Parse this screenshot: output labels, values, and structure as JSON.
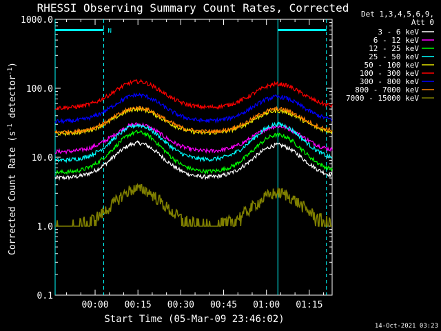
{
  "chart_data": {
    "type": "line",
    "title": "RHESSI Observing Summary Count Rates, Corrected",
    "xlabel": "Start Time (05-Mar-09 23:46:02)",
    "ylabel_main": "Corrected Count Rate (s",
    "ylabel_sup1": "-1",
    "ylabel_mid": " detector",
    "ylabel_sup2": "-1",
    "ylabel_end": ")",
    "y_scale": "log",
    "ylim": [
      0.1,
      1000.0
    ],
    "xlim_minutes": [
      0,
      97
    ],
    "x_ticks": [
      {
        "min": 14,
        "label": "00:00"
      },
      {
        "min": 29,
        "label": "00:15"
      },
      {
        "min": 44,
        "label": "00:30"
      },
      {
        "min": 59,
        "label": "00:45"
      },
      {
        "min": 74,
        "label": "01:00"
      },
      {
        "min": 89,
        "label": "01:15"
      }
    ],
    "y_ticks": [
      {
        "value": 0.1,
        "label": "0.1"
      },
      {
        "value": 1.0,
        "label": "1.0"
      },
      {
        "value": 10.0,
        "label": "10.0"
      },
      {
        "value": 100.0,
        "label": "100.0"
      },
      {
        "value": 1000.0,
        "label": "1000.0"
      }
    ],
    "legend_header": [
      "Det 1,3,4,5,6,9,",
      "Att 0"
    ],
    "legend_placement": "top-right outside",
    "series": [
      {
        "name": "3 - 6 keV",
        "color": "#ffffff",
        "base": 5.0,
        "peak1": 16,
        "peak2": 15
      },
      {
        "name": "6 - 12 keV",
        "color": "#ff00ff",
        "base": 12.0,
        "peak1": 30,
        "peak2": 28
      },
      {
        "name": "12 - 25 keV",
        "color": "#00ff00",
        "base": 6.0,
        "peak1": 23,
        "peak2": 21
      },
      {
        "name": "25 - 50 keV",
        "color": "#00ffff",
        "base": 9.0,
        "peak1": 29,
        "peak2": 30
      },
      {
        "name": "50 - 100 keV",
        "color": "#e6e600",
        "base": 22.0,
        "peak1": 50,
        "peak2": 47
      },
      {
        "name": "100 - 300 keV",
        "color": "#ff0000",
        "base": 52.0,
        "peak1": 125,
        "peak2": 115
      },
      {
        "name": "300 - 800 keV",
        "color": "#0000ff",
        "base": 33.0,
        "peak1": 80,
        "peak2": 75
      },
      {
        "name": "800 - 7000 keV",
        "color": "#ff8000",
        "base": 23.0,
        "peak1": 52,
        "peak2": 50
      },
      {
        "name": "7000 - 15000 keV",
        "color": "#808000",
        "base": 1.0,
        "peak1": 3.5,
        "peak2": 3.0
      }
    ],
    "peak_times_minutes": [
      29,
      78
    ],
    "flag_bars": [
      {
        "start_min": 0,
        "end_min": 17,
        "value": 700,
        "label": "N"
      },
      {
        "start_min": 78,
        "end_min": 95,
        "value": 700,
        "label": ""
      }
    ],
    "vertical_markers": [
      {
        "min": 0,
        "style": "solid"
      },
      {
        "min": 17,
        "style": "dashed"
      },
      {
        "min": 78,
        "style": "solid"
      },
      {
        "min": 95,
        "style": "dashed"
      }
    ],
    "grid": false
  },
  "footer_timestamp": "14-Oct-2021 03:23",
  "colors": {
    "background": "#000000",
    "axis": "#ffffff",
    "marker": "#00ffff"
  }
}
